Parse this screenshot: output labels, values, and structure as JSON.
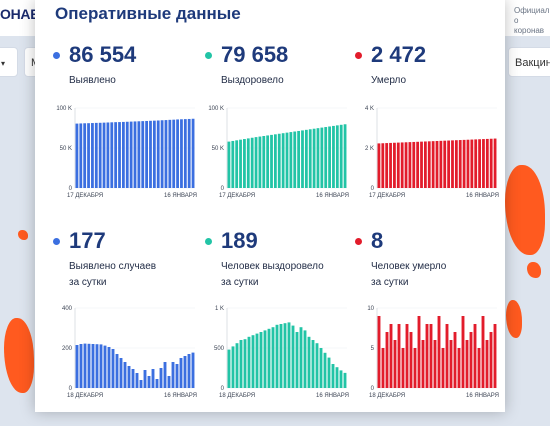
{
  "site": {
    "logo_fragment": "ОНАВИ",
    "official_line1": "Официал",
    "official_line2": "о коронав",
    "nav_vaccines_fragment": "Вакцин",
    "nav_btn_fragment": "М",
    "nav_dropdown_icon": "chevron-down-icon",
    "map_color": "#ff5a1f"
  },
  "modal": {
    "title": "Оперативные данные",
    "cards": [
      {
        "value": "86 554",
        "label_1": "Выявлено",
        "label_2": "",
        "color": "#3b6fe0"
      },
      {
        "value": "79 658",
        "label_1": "Выздоровело",
        "label_2": "",
        "color": "#22c4a6"
      },
      {
        "value": "2 472",
        "label_1": "Умерло",
        "label_2": "",
        "color": "#e21c2b"
      },
      {
        "value": "177",
        "label_1": "Выявлено случаев",
        "label_2": "за сутки",
        "color": "#3b6fe0"
      },
      {
        "value": "189",
        "label_1": "Человек выздоровело",
        "label_2": "за сутки",
        "color": "#22c4a6"
      },
      {
        "value": "8",
        "label_1": "Человек умерло",
        "label_2": "за сутки",
        "color": "#e21c2b"
      }
    ]
  },
  "chart_data": [
    {
      "type": "bar",
      "title": "Выявлено",
      "x_start_label": "17 ДЕКАБРЯ",
      "x_end_label": "16 ЯНВАРЯ",
      "yticks": [
        "100 K",
        "50 K",
        "0"
      ],
      "ylim": [
        0,
        100000
      ],
      "values": [
        80500,
        80700,
        80900,
        81000,
        81200,
        81400,
        81500,
        81700,
        81900,
        82100,
        82300,
        82400,
        82600,
        82800,
        83000,
        83200,
        83400,
        83600,
        83800,
        84000,
        84200,
        84400,
        84700,
        84900,
        85200,
        85400,
        85700,
        85900,
        86100,
        86300,
        86554
      ]
    },
    {
      "type": "bar",
      "title": "Выздоровело",
      "x_start_label": "17 ДЕКАБРЯ",
      "x_end_label": "16 ЯНВАРЯ",
      "yticks": [
        "100 K",
        "50 K",
        "0"
      ],
      "ylim": [
        0,
        100000
      ],
      "values": [
        58000,
        58800,
        59600,
        60400,
        61200,
        62000,
        62800,
        63600,
        64300,
        65000,
        65700,
        66400,
        67100,
        67800,
        68500,
        69200,
        69900,
        70600,
        71300,
        72000,
        72700,
        73400,
        74100,
        74800,
        75500,
        76200,
        76900,
        77600,
        78300,
        79000,
        79658
      ]
    },
    {
      "type": "bar",
      "title": "Умерло",
      "x_start_label": "17 ДЕКАБРЯ",
      "x_end_label": "16 ЯНВАРЯ",
      "yticks": [
        "4 K",
        "2 K",
        "0"
      ],
      "ylim": [
        0,
        4000
      ],
      "values": [
        2230,
        2238,
        2246,
        2254,
        2262,
        2270,
        2278,
        2286,
        2294,
        2302,
        2310,
        2318,
        2326,
        2334,
        2342,
        2350,
        2358,
        2366,
        2374,
        2382,
        2390,
        2398,
        2406,
        2414,
        2422,
        2430,
        2438,
        2446,
        2454,
        2463,
        2472
      ]
    },
    {
      "type": "bar",
      "title": "Выявлено случаев за сутки",
      "x_start_label": "18 ДЕКАБРЯ",
      "x_end_label": "16 ЯНВАРЯ",
      "yticks": [
        "400",
        "200",
        "0"
      ],
      "ylim": [
        0,
        400
      ],
      "values": [
        215,
        220,
        222,
        221,
        220,
        219,
        218,
        212,
        205,
        195,
        170,
        150,
        130,
        110,
        95,
        75,
        40,
        90,
        60,
        95,
        45,
        100,
        130,
        60,
        130,
        120,
        150,
        160,
        170,
        177
      ]
    },
    {
      "type": "bar",
      "title": "Человек выздоровело за сутки",
      "x_start_label": "18 ДЕКАБРЯ",
      "x_end_label": "16 ЯНВАРЯ",
      "yticks": [
        "1 K",
        "500",
        "0"
      ],
      "ylim": [
        0,
        1000
      ],
      "values": [
        480,
        520,
        560,
        600,
        610,
        640,
        660,
        680,
        700,
        720,
        740,
        760,
        790,
        800,
        810,
        820,
        780,
        700,
        760,
        720,
        640,
        600,
        560,
        500,
        440,
        380,
        300,
        260,
        220,
        189
      ]
    },
    {
      "type": "bar",
      "title": "Человек умерло за сутки",
      "x_start_label": "18 ДЕКАБРЯ",
      "x_end_label": "16 ЯНВАРЯ",
      "yticks": [
        "10",
        "5",
        "0"
      ],
      "ylim": [
        0,
        10
      ],
      "values": [
        9,
        5,
        7,
        8,
        6,
        8,
        5,
        8,
        7,
        5,
        9,
        6,
        8,
        8,
        6,
        9,
        5,
        8,
        6,
        7,
        5,
        9,
        6,
        7,
        8,
        5,
        9,
        6,
        7,
        8
      ]
    }
  ]
}
